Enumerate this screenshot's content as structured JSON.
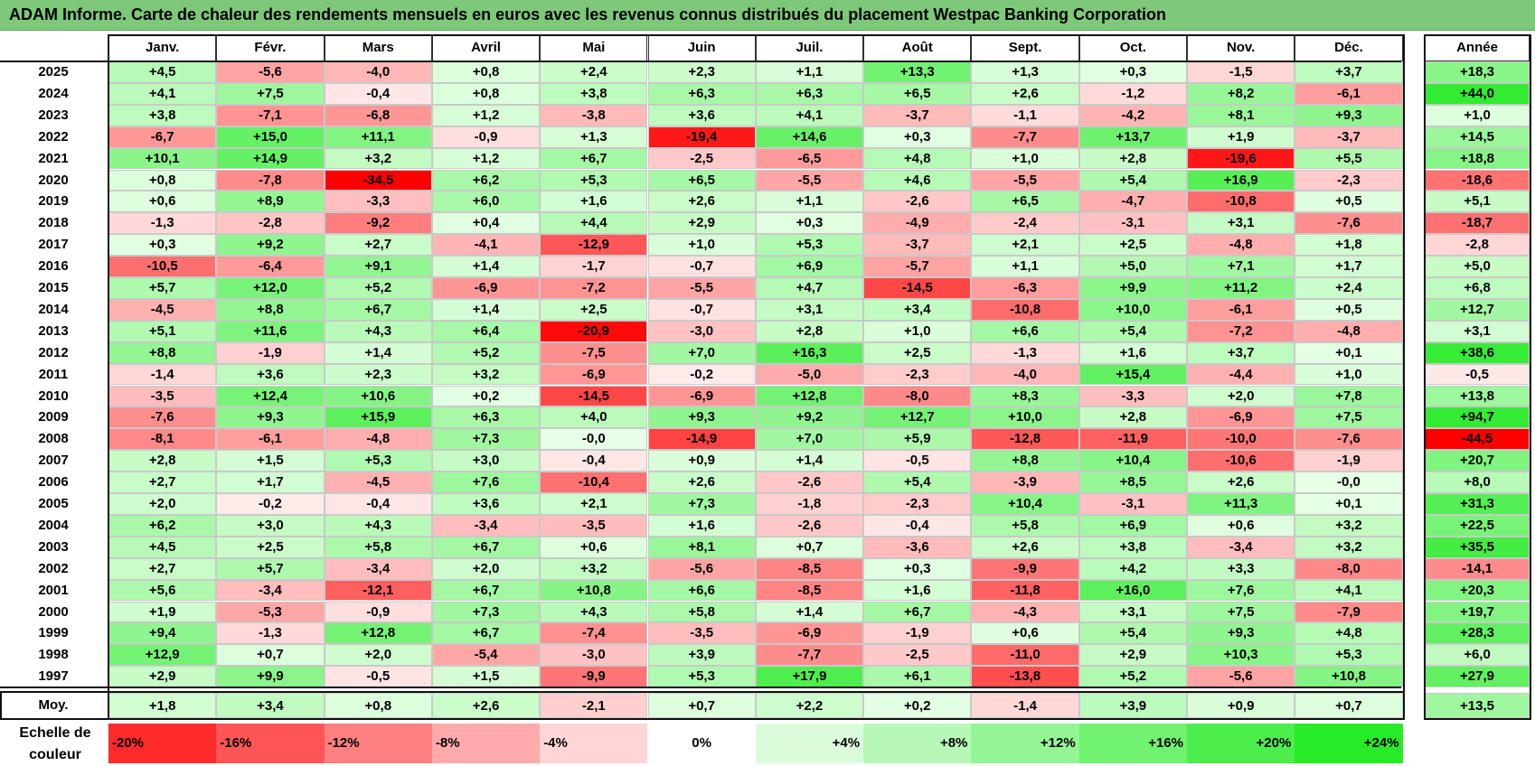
{
  "title": "ADAM Informe. Carte de chaleur des rendements mensuels en euros avec les revenus connus distribués du placement Westpac Banking Corporation",
  "chart_data": {
    "type": "heatmap",
    "months": [
      "Janv.",
      "Févr.",
      "Mars",
      "Avril",
      "Mai",
      "Juin",
      "Juil.",
      "Août",
      "Sept.",
      "Oct.",
      "Nov.",
      "Déc."
    ],
    "annual_label": "Année",
    "rows": [
      {
        "year": "2025",
        "values": [
          "+4,5",
          "-5,6",
          "-4,0",
          "+0,8",
          "+2,4",
          "+2,3",
          "+1,1",
          "+13,3",
          "+1,3",
          "+0,3",
          "-1,5",
          "+3,7"
        ],
        "annual": "+18,3"
      },
      {
        "year": "2024",
        "values": [
          "+4,1",
          "+7,5",
          "-0,4",
          "+0,8",
          "+3,8",
          "+6,3",
          "+6,3",
          "+6,5",
          "+2,6",
          "-1,2",
          "+8,2",
          "-6,1"
        ],
        "annual": "+44,0"
      },
      {
        "year": "2023",
        "values": [
          "+3,8",
          "-7,1",
          "-6,8",
          "+1,2",
          "-3,8",
          "+3,6",
          "+4,1",
          "-3,7",
          "-1,1",
          "-4,2",
          "+8,1",
          "+9,3"
        ],
        "annual": "+1,0"
      },
      {
        "year": "2022",
        "values": [
          "-6,7",
          "+15,0",
          "+11,1",
          "-0,9",
          "+1,3",
          "-19,4",
          "+14,6",
          "+0,3",
          "-7,7",
          "+13,7",
          "+1,9",
          "-3,7"
        ],
        "annual": "+14,5"
      },
      {
        "year": "2021",
        "values": [
          "+10,1",
          "+14,9",
          "+3,2",
          "+1,2",
          "+6,7",
          "-2,5",
          "-6,5",
          "+4,8",
          "+1,0",
          "+2,8",
          "-19,6",
          "+5,5"
        ],
        "annual": "+18,8"
      },
      {
        "year": "2020",
        "values": [
          "+0,8",
          "-7,8",
          "-34,5",
          "+6,2",
          "+5,3",
          "+6,5",
          "-5,5",
          "+4,6",
          "-5,5",
          "+5,4",
          "+16,9",
          "-2,3"
        ],
        "annual": "-18,6"
      },
      {
        "year": "2019",
        "values": [
          "+0,6",
          "+8,9",
          "-3,3",
          "+6,0",
          "+1,6",
          "+2,6",
          "+1,1",
          "-2,6",
          "+6,5",
          "-4,7",
          "-10,8",
          "+0,5"
        ],
        "annual": "+5,1"
      },
      {
        "year": "2018",
        "values": [
          "-1,3",
          "-2,8",
          "-9,2",
          "+0,4",
          "+4,4",
          "+2,9",
          "+0,3",
          "-4,9",
          "-2,4",
          "-3,1",
          "+3,1",
          "-7,6"
        ],
        "annual": "-18,7"
      },
      {
        "year": "2017",
        "values": [
          "+0,3",
          "+9,2",
          "+2,7",
          "-4,1",
          "-12,9",
          "+1,0",
          "+5,3",
          "-3,7",
          "+2,1",
          "+2,5",
          "-4,8",
          "+1,8"
        ],
        "annual": "-2,8"
      },
      {
        "year": "2016",
        "values": [
          "-10,5",
          "-6,4",
          "+9,1",
          "+1,4",
          "-1,7",
          "-0,7",
          "+6,9",
          "-5,7",
          "+1,1",
          "+5,0",
          "+7,1",
          "+1,7"
        ],
        "annual": "+5,0"
      },
      {
        "year": "2015",
        "values": [
          "+5,7",
          "+12,0",
          "+5,2",
          "-6,9",
          "-7,2",
          "-5,5",
          "+4,7",
          "-14,5",
          "-6,3",
          "+9,9",
          "+11,2",
          "+2,4"
        ],
        "annual": "+6,8"
      },
      {
        "year": "2014",
        "values": [
          "-4,5",
          "+8,8",
          "+6,7",
          "+1,4",
          "+2,5",
          "-0,7",
          "+3,1",
          "+3,4",
          "-10,8",
          "+10,0",
          "-6,1",
          "+0,5"
        ],
        "annual": "+12,7"
      },
      {
        "year": "2013",
        "values": [
          "+5,1",
          "+11,6",
          "+4,3",
          "+6,4",
          "-20,9",
          "-3,0",
          "+2,8",
          "+1,0",
          "+6,6",
          "+5,4",
          "-7,2",
          "-4,8"
        ],
        "annual": "+3,1"
      },
      {
        "year": "2012",
        "values": [
          "+8,8",
          "-1,9",
          "+1,4",
          "+5,2",
          "-7,5",
          "+7,0",
          "+16,3",
          "+2,5",
          "-1,3",
          "+1,6",
          "+3,7",
          "+0,1"
        ],
        "annual": "+38,6"
      },
      {
        "year": "2011",
        "values": [
          "-1,4",
          "+3,6",
          "+2,3",
          "+3,2",
          "-6,9",
          "-0,2",
          "-5,0",
          "-2,3",
          "-4,0",
          "+15,4",
          "-4,4",
          "+1,0"
        ],
        "annual": "-0,5"
      },
      {
        "year": "2010",
        "values": [
          "-3,5",
          "+12,4",
          "+10,6",
          "+0,2",
          "-14,5",
          "-6,9",
          "+12,8",
          "-8,0",
          "+8,3",
          "-3,3",
          "+2,0",
          "+7,8"
        ],
        "annual": "+13,8"
      },
      {
        "year": "2009",
        "values": [
          "-7,6",
          "+9,3",
          "+15,9",
          "+6,3",
          "+4,0",
          "+9,3",
          "+9,2",
          "+12,7",
          "+10,0",
          "+2,8",
          "-6,9",
          "+7,5"
        ],
        "annual": "+94,7"
      },
      {
        "year": "2008",
        "values": [
          "-8,1",
          "-6,1",
          "-4,8",
          "+7,3",
          "-0,0",
          "-14,9",
          "+7,0",
          "+5,9",
          "-12,8",
          "-11,9",
          "-10,0",
          "-7,6"
        ],
        "annual": "-44,5"
      },
      {
        "year": "2007",
        "values": [
          "+2,8",
          "+1,5",
          "+5,3",
          "+3,0",
          "-0,4",
          "+0,9",
          "+1,4",
          "-0,5",
          "+8,8",
          "+10,4",
          "-10,6",
          "-1,9"
        ],
        "annual": "+20,7"
      },
      {
        "year": "2006",
        "values": [
          "+2,7",
          "+1,7",
          "-4,5",
          "+7,6",
          "-10,4",
          "+2,6",
          "-2,6",
          "+5,4",
          "-3,9",
          "+8,5",
          "+2,6",
          "-0,0"
        ],
        "annual": "+8,0"
      },
      {
        "year": "2005",
        "values": [
          "+2,0",
          "-0,2",
          "-0,4",
          "+3,6",
          "+2,1",
          "+7,3",
          "-1,8",
          "-2,3",
          "+10,4",
          "-3,1",
          "+11,3",
          "+0,1"
        ],
        "annual": "+31,3"
      },
      {
        "year": "2004",
        "values": [
          "+6,2",
          "+3,0",
          "+4,3",
          "-3,4",
          "-3,5",
          "+1,6",
          "-2,6",
          "-0,4",
          "+5,8",
          "+6,9",
          "+0,6",
          "+3,2"
        ],
        "annual": "+22,5"
      },
      {
        "year": "2003",
        "values": [
          "+4,5",
          "+2,5",
          "+5,8",
          "+6,7",
          "+0,6",
          "+8,1",
          "+0,7",
          "-3,6",
          "+2,6",
          "+3,8",
          "-3,4",
          "+3,2"
        ],
        "annual": "+35,5"
      },
      {
        "year": "2002",
        "values": [
          "+2,7",
          "+5,7",
          "-3,4",
          "+2,0",
          "+3,2",
          "-5,6",
          "-8,5",
          "+0,3",
          "-9,9",
          "+4,2",
          "+3,3",
          "-8,0"
        ],
        "annual": "-14,1"
      },
      {
        "year": "2001",
        "values": [
          "+5,6",
          "-3,4",
          "-12,1",
          "+6,7",
          "+10,8",
          "+6,6",
          "-8,5",
          "+1,6",
          "-11,8",
          "+16,0",
          "+7,6",
          "+4,1"
        ],
        "annual": "+20,3"
      },
      {
        "year": "2000",
        "values": [
          "+1,9",
          "-5,3",
          "-0,9",
          "+7,3",
          "+4,3",
          "+5,8",
          "+1,4",
          "+6,7",
          "-4,3",
          "+3,1",
          "+7,5",
          "-7,9"
        ],
        "annual": "+19,7"
      },
      {
        "year": "1999",
        "values": [
          "+9,4",
          "-1,3",
          "+12,8",
          "+6,7",
          "-7,4",
          "-3,5",
          "-6,9",
          "-1,9",
          "+0,6",
          "+5,4",
          "+9,3",
          "+4,8"
        ],
        "annual": "+28,3"
      },
      {
        "year": "1998",
        "values": [
          "+12,9",
          "+0,7",
          "+2,0",
          "-5,4",
          "-3,0",
          "+3,9",
          "-7,7",
          "-2,5",
          "-11,0",
          "+2,9",
          "+10,3",
          "+5,3"
        ],
        "annual": "+6,0"
      },
      {
        "year": "1997",
        "values": [
          "+2,9",
          "+9,9",
          "-0,5",
          "+1,5",
          "-9,9",
          "+5,3",
          "+17,9",
          "+6,1",
          "-13,8",
          "+5,2",
          "-5,6",
          "+10,8"
        ],
        "annual": "+27,9"
      }
    ],
    "average": {
      "label": "Moy.",
      "values": [
        "+1,8",
        "+3,4",
        "+0,8",
        "+2,6",
        "-2,1",
        "+0,7",
        "+2,2",
        "+0,2",
        "-1,4",
        "+3,9",
        "+0,9",
        "+0,7"
      ],
      "annual": "+13,5"
    },
    "color_scale": {
      "label": "Echelle de couleur",
      "stops": [
        "-20%",
        "-16%",
        "-12%",
        "-8%",
        "-4%",
        "0%",
        "+4%",
        "+8%",
        "+12%",
        "+16%",
        "+20%",
        "+24%"
      ],
      "negative_color": "#ff0000",
      "positive_color": "#00e000",
      "neutral_color": "#ffffff"
    }
  }
}
